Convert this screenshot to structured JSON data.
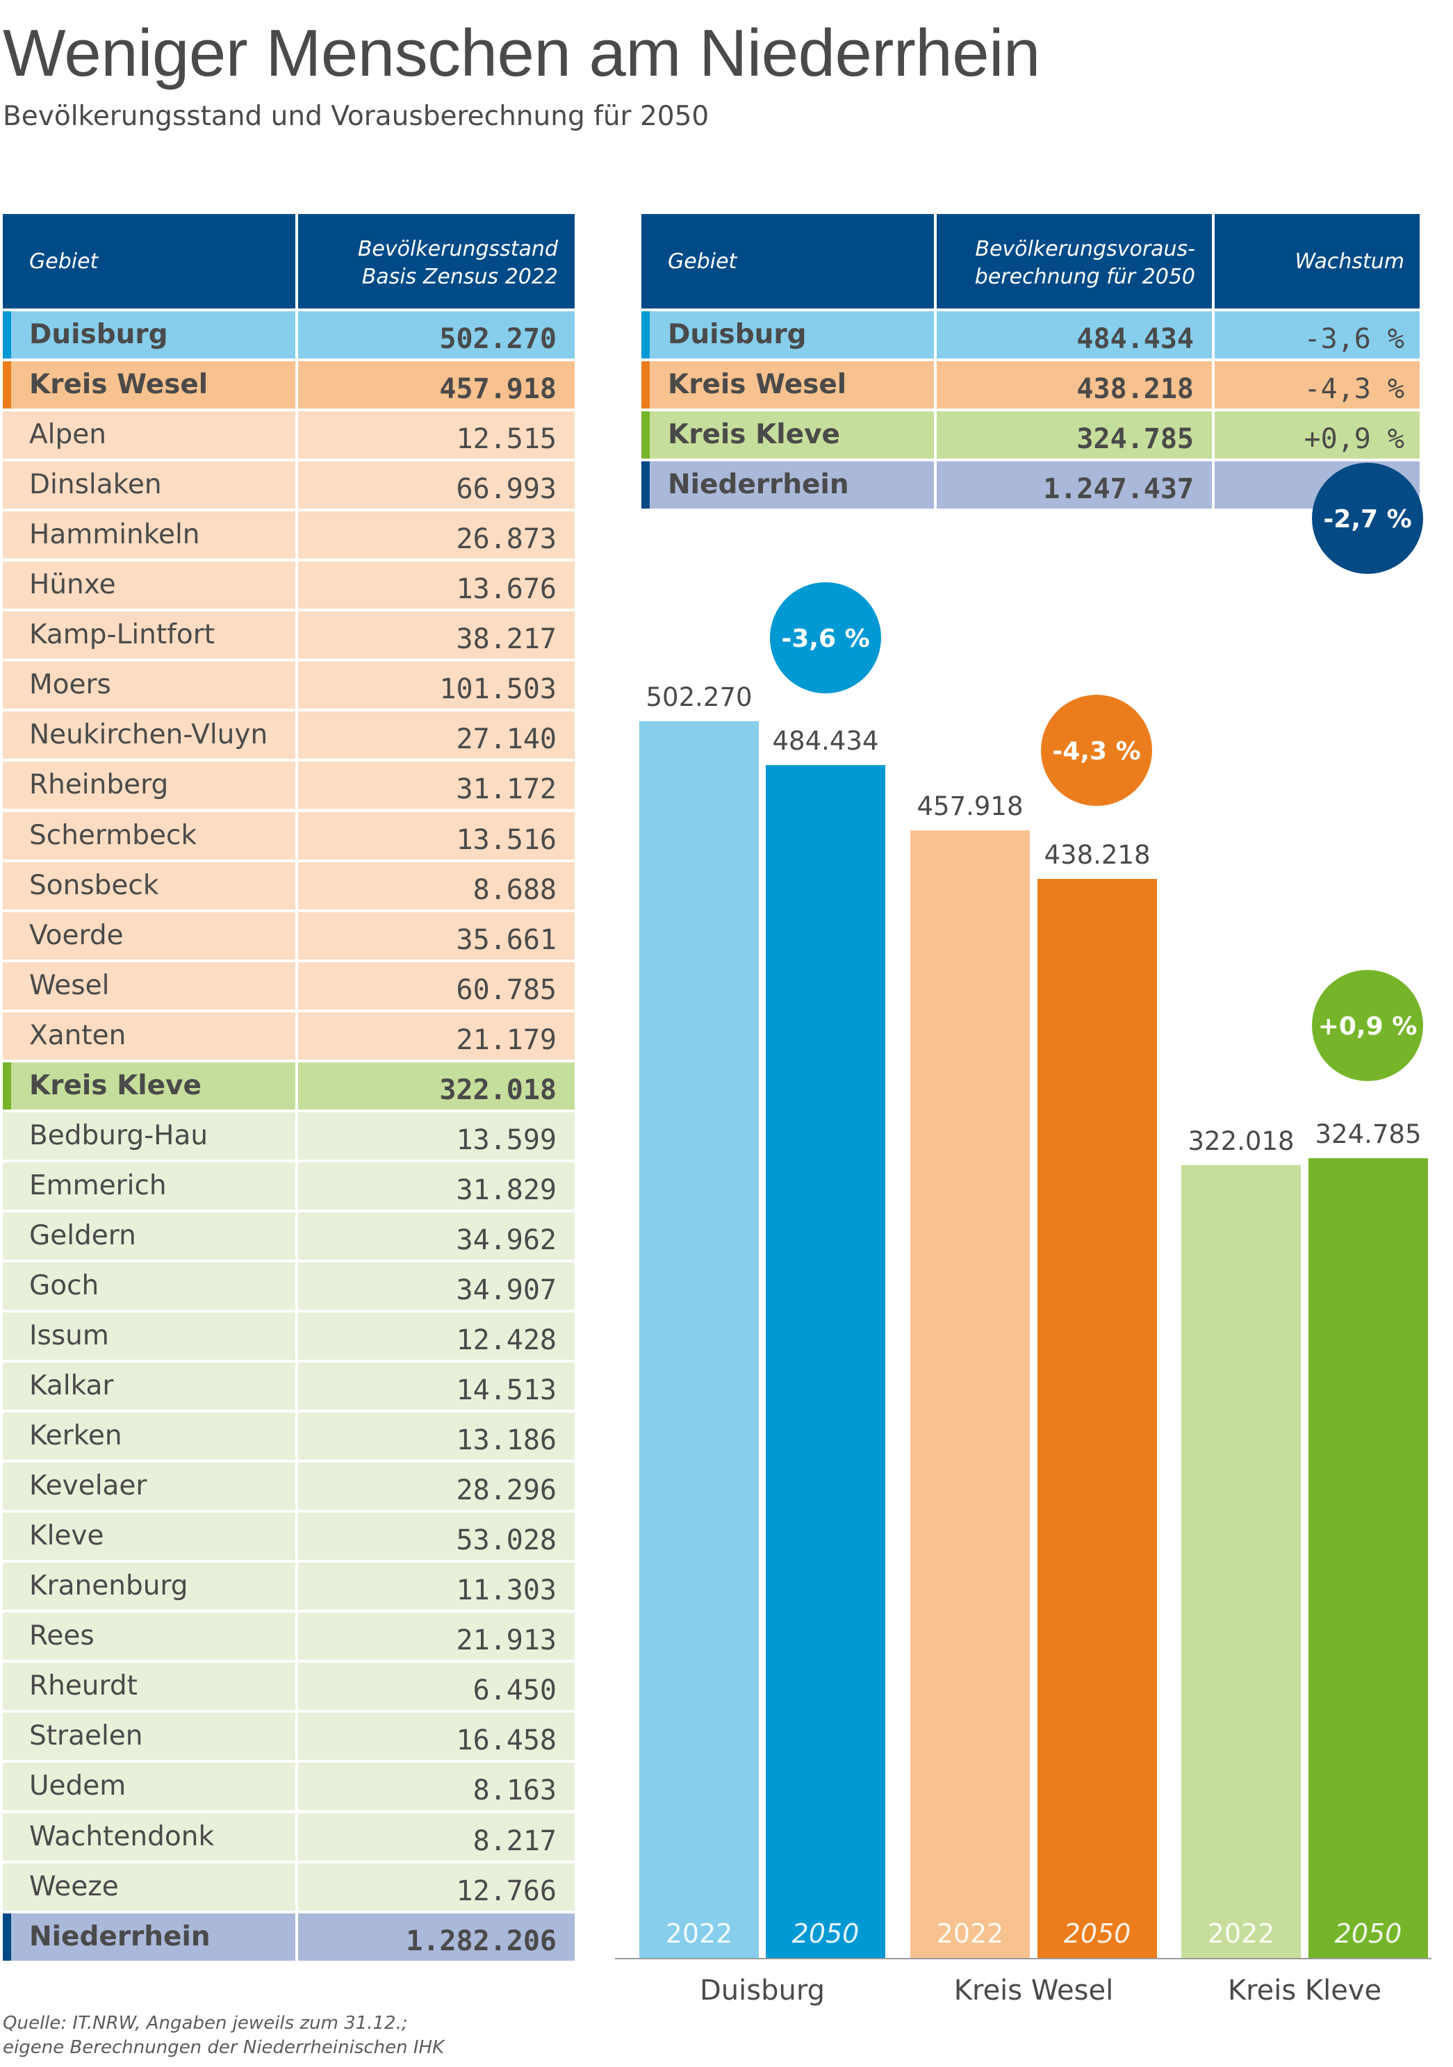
{
  "title": "Weniger Menschen am Niederrhein",
  "subtitle": "Bevölkerungsstand und Vorausberechnung für 2050",
  "colors": {
    "header": "#004b87",
    "duisburg_light": "#86ceec",
    "duisburg_dark": "#0099d4",
    "wesel_light": "#f7c28f",
    "wesel_dark": "#ec7d1c",
    "wesel_row": "#fcdcc2",
    "kleve_light": "#c6de9b",
    "kleve_dark": "#76b52a",
    "kleve_row": "#e8f0da",
    "niederrhein_row": "#aab8d9",
    "niederrhein_dark": "#044a85"
  },
  "table_2022": {
    "headers": {
      "gebiet": "Gebiet",
      "stand_line1": "Bevölkerungsstand",
      "stand_line2": "Basis Zensus 2022"
    },
    "rows": [
      {
        "name": "Duisburg",
        "value": "502.270",
        "group": "duisburg",
        "total": true
      },
      {
        "name": "Kreis Wesel",
        "value": "457.918",
        "group": "wesel",
        "total": true
      },
      {
        "name": "Alpen",
        "value": "12.515",
        "group": "wesel"
      },
      {
        "name": "Dinslaken",
        "value": "66.993",
        "group": "wesel"
      },
      {
        "name": "Hamminkeln",
        "value": "26.873",
        "group": "wesel"
      },
      {
        "name": "Hünxe",
        "value": "13.676",
        "group": "wesel"
      },
      {
        "name": "Kamp-Lintfort",
        "value": "38.217",
        "group": "wesel"
      },
      {
        "name": "Moers",
        "value": "101.503",
        "group": "wesel"
      },
      {
        "name": "Neukirchen-Vluyn",
        "value": "27.140",
        "group": "wesel"
      },
      {
        "name": "Rheinberg",
        "value": "31.172",
        "group": "wesel"
      },
      {
        "name": "Schermbeck",
        "value": "13.516",
        "group": "wesel"
      },
      {
        "name": "Sonsbeck",
        "value": "8.688",
        "group": "wesel"
      },
      {
        "name": "Voerde",
        "value": "35.661",
        "group": "wesel"
      },
      {
        "name": "Wesel",
        "value": "60.785",
        "group": "wesel"
      },
      {
        "name": "Xanten",
        "value": "21.179",
        "group": "wesel"
      },
      {
        "name": "Kreis Kleve",
        "value": "322.018",
        "group": "kleve",
        "total": true
      },
      {
        "name": "Bedburg-Hau",
        "value": "13.599",
        "group": "kleve"
      },
      {
        "name": "Emmerich",
        "value": "31.829",
        "group": "kleve"
      },
      {
        "name": "Geldern",
        "value": "34.962",
        "group": "kleve"
      },
      {
        "name": "Goch",
        "value": "34.907",
        "group": "kleve"
      },
      {
        "name": "Issum",
        "value": "12.428",
        "group": "kleve"
      },
      {
        "name": "Kalkar",
        "value": "14.513",
        "group": "kleve"
      },
      {
        "name": "Kerken",
        "value": "13.186",
        "group": "kleve"
      },
      {
        "name": "Kevelaer",
        "value": "28.296",
        "group": "kleve"
      },
      {
        "name": "Kleve",
        "value": "53.028",
        "group": "kleve"
      },
      {
        "name": "Kranenburg",
        "value": "11.303",
        "group": "kleve"
      },
      {
        "name": "Rees",
        "value": "21.913",
        "group": "kleve"
      },
      {
        "name": "Rheurdt",
        "value": "6.450",
        "group": "kleve"
      },
      {
        "name": "Straelen",
        "value": "16.458",
        "group": "kleve"
      },
      {
        "name": "Uedem",
        "value": "8.163",
        "group": "kleve"
      },
      {
        "name": "Wachtendonk",
        "value": "8.217",
        "group": "kleve"
      },
      {
        "name": "Weeze",
        "value": "12.766",
        "group": "kleve"
      },
      {
        "name": "Niederrhein",
        "value": "1.282.206",
        "group": "niederrhein",
        "total": true
      }
    ]
  },
  "table_2050": {
    "headers": {
      "gebiet": "Gebiet",
      "proj_line1": "Bevölkerungsvoraus-",
      "proj_line2": "berechnung für 2050",
      "wachstum": "Wachstum"
    },
    "rows": [
      {
        "name": "Duisburg",
        "value": "484.434",
        "growth": "-3,6 %",
        "group": "duisburg"
      },
      {
        "name": "Kreis Wesel",
        "value": "438.218",
        "growth": "-4,3 %",
        "group": "wesel"
      },
      {
        "name": "Kreis Kleve",
        "value": "324.785",
        "growth": "+0,9 %",
        "group": "kleve"
      },
      {
        "name": "Niederrhein",
        "value": "1.247.437",
        "growth": "",
        "group": "niederrhein"
      }
    ],
    "niederrhein_badge": "-2,7 %"
  },
  "chart_data": {
    "type": "bar",
    "categories": [
      "Duisburg",
      "Kreis Wesel",
      "Kreis Kleve"
    ],
    "series": [
      {
        "name": "2022",
        "values": [
          502270,
          457918,
          322018
        ],
        "labels": [
          "502.270",
          "457.918",
          "322.018"
        ]
      },
      {
        "name": "2050",
        "values": [
          484434,
          438218,
          324785
        ],
        "labels": [
          "484.434",
          "438.218",
          "324.785"
        ]
      }
    ],
    "growth_badges": [
      "-3,6 %",
      "-4,3 %",
      "+0,9 %"
    ],
    "ylim": [
      0,
      502270
    ]
  },
  "source_line1": "Quelle: IT.NRW, Angaben jeweils zum 31.12.;",
  "source_line2": "eigene Berechnungen der Niederrheinischen IHK"
}
